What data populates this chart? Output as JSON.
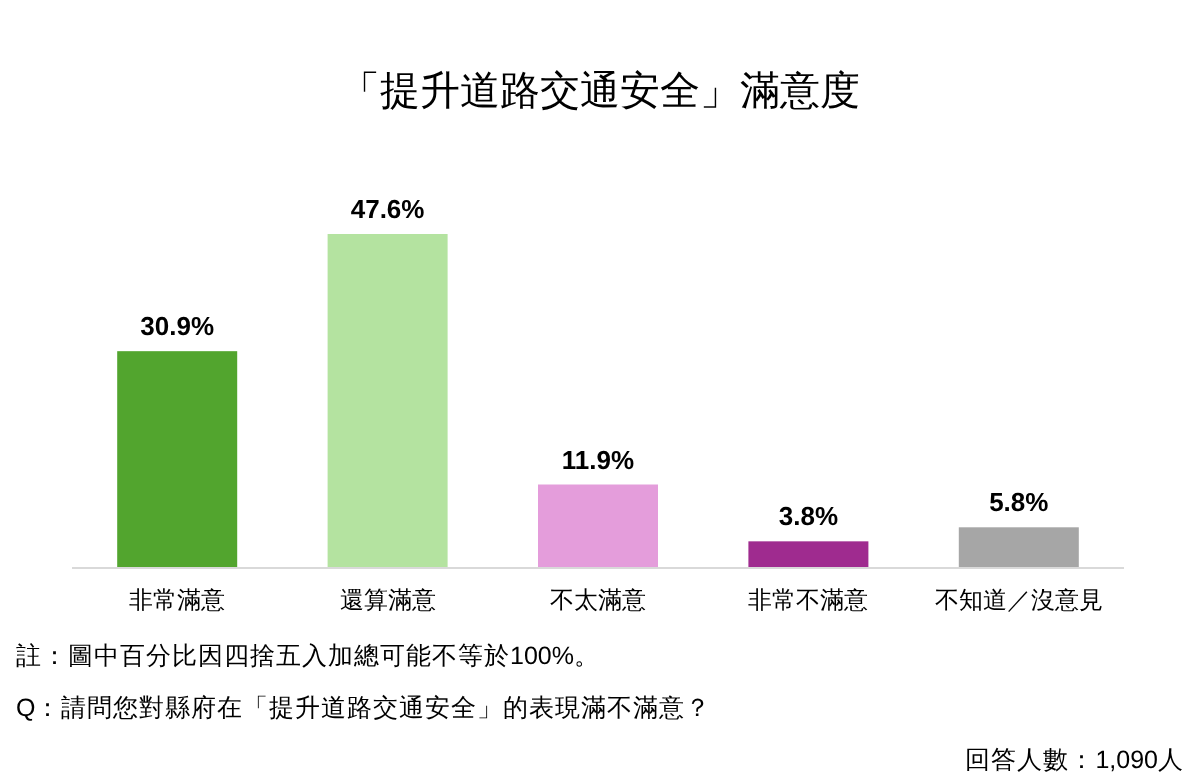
{
  "chart_data": {
    "type": "bar",
    "title": "「提升道路交通安全」滿意度",
    "categories": [
      "非常滿意",
      "還算滿意",
      "不太滿意",
      "非常不滿意",
      "不知道／沒意見"
    ],
    "values": [
      30.9,
      47.6,
      11.9,
      3.8,
      5.8
    ],
    "value_labels": [
      "30.9%",
      "47.6%",
      "11.9%",
      "3.8%",
      "5.8%"
    ],
    "colors": [
      "#52a52e",
      "#b4e3a0",
      "#e49ddb",
      "#9f2b8f",
      "#a6a6a6"
    ],
    "annotations": [
      "註：圖中百分比因四捨五入加總可能不等於100%。",
      "Q：請問您對縣府在「提升道路交通安全」的表現滿不滿意？",
      "回答人數：1,090人"
    ]
  }
}
